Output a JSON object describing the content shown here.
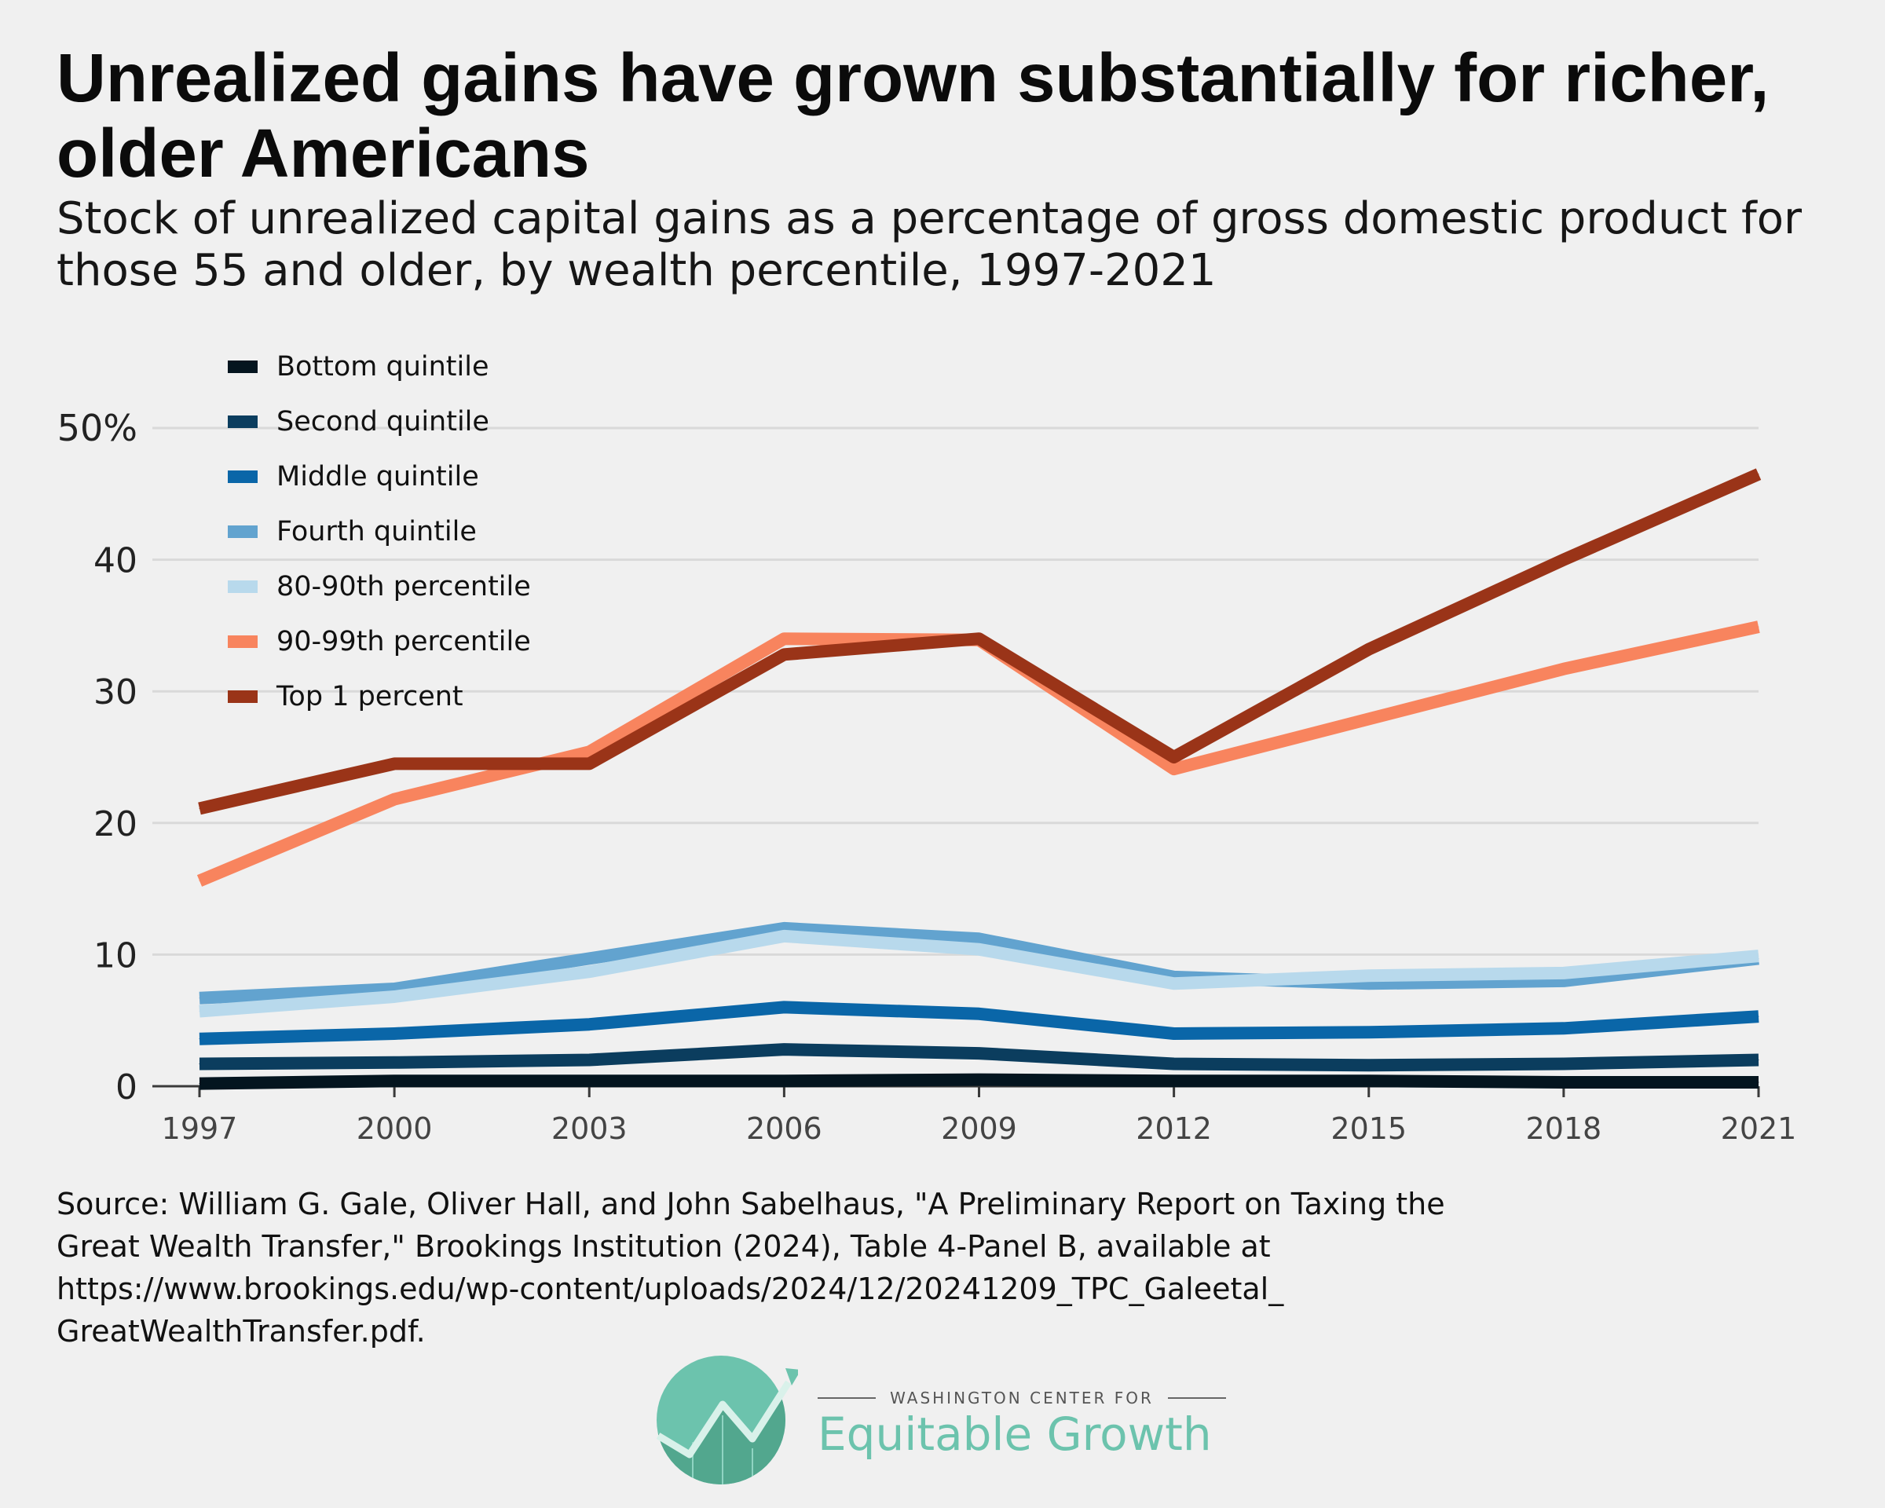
{
  "header": {
    "title": "Unrealized gains have grown substantially for richer, older Americans",
    "subtitle": "Stock of unrealized capital gains as a percentage of gross domestic product for those 55 and older, by wealth percentile, 1997-2021"
  },
  "chart_data": {
    "type": "line",
    "title": "Unrealized gains have grown substantially for richer, older Americans",
    "subtitle": "Stock of unrealized capital gains as a percentage of gross domestic product for those 55 and older, by wealth percentile, 1997-2021",
    "xlabel": "",
    "ylabel": "",
    "x": [
      "1997",
      "2000",
      "2003",
      "2006",
      "2009",
      "2012",
      "2015",
      "2018",
      "2021"
    ],
    "ylim": [
      0,
      50
    ],
    "y_ticks": [
      {
        "value": 0,
        "label": "0"
      },
      {
        "value": 10,
        "label": "10"
      },
      {
        "value": 20,
        "label": "20"
      },
      {
        "value": 30,
        "label": "30"
      },
      {
        "value": 40,
        "label": "40"
      },
      {
        "value": 50,
        "label": "50%"
      }
    ],
    "grid": "horizontal",
    "legend_position": "top-left",
    "series": [
      {
        "name": "Bottom quintile",
        "color": "#04151f",
        "values": [
          0.2,
          0.4,
          0.4,
          0.4,
          0.5,
          0.4,
          0.4,
          0.3,
          0.3
        ]
      },
      {
        "name": "Second quintile",
        "color": "#0b3d5e",
        "values": [
          1.7,
          1.8,
          2.0,
          2.8,
          2.5,
          1.7,
          1.6,
          1.7,
          2.0
        ]
      },
      {
        "name": "Middle quintile",
        "color": "#0a66a8",
        "values": [
          3.6,
          4.0,
          4.7,
          6.0,
          5.5,
          4.0,
          4.1,
          4.4,
          5.3
        ]
      },
      {
        "name": "Fourth quintile",
        "color": "#62a3cf",
        "values": [
          6.7,
          7.4,
          9.7,
          12.0,
          11.2,
          8.3,
          7.8,
          8.0,
          9.7
        ]
      },
      {
        "name": "80-90th percentile",
        "color": "#b8d9ec",
        "values": [
          5.7,
          6.8,
          8.7,
          11.4,
          10.4,
          7.8,
          8.4,
          8.6,
          9.9
        ]
      },
      {
        "name": "90-99th percentile",
        "color": "#f8845e",
        "values": [
          15.6,
          21.8,
          25.4,
          34.0,
          33.9,
          24.1,
          27.9,
          31.7,
          34.9
        ]
      },
      {
        "name": "Top 1 percent",
        "color": "#9a3418",
        "values": [
          21.1,
          24.5,
          24.5,
          32.8,
          34.0,
          25.0,
          33.2,
          40.0,
          46.5
        ]
      }
    ]
  },
  "source": {
    "lines": [
      "Source: William G. Gale, Oliver Hall, and John Sabelhaus, \"A Preliminary Report on Taxing the",
      "Great Wealth Transfer,\" Brookings Institution (2024), Table 4-Panel B, available at",
      "https://www.brookings.edu/wp-content/uploads/2024/12/20241209_TPC_Galeetal_",
      "GreatWealthTransfer.pdf."
    ]
  },
  "brand": {
    "top_line": "WASHINGTON CENTER FOR",
    "name": "Equitable Growth",
    "mark_color": "#6cc3ad",
    "mark_dark": "#52a78e"
  }
}
